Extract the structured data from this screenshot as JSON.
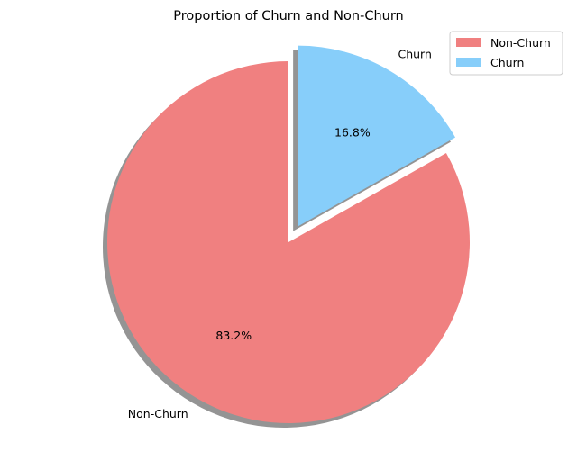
{
  "chart_data": {
    "type": "pie",
    "title": "Proportion of Churn and Non-Churn",
    "series": [
      {
        "name": "Non-Churn",
        "value": 83.2,
        "label": "83.2%",
        "color": "#f08080",
        "explode": 0
      },
      {
        "name": "Churn",
        "value": 16.8,
        "label": "16.8%",
        "color": "#87cefa",
        "explode": 0.1
      }
    ],
    "start_angle_deg": 90,
    "shadow": true,
    "legend": {
      "placement": "top-right",
      "entries": [
        "Non-Churn",
        "Churn"
      ]
    }
  }
}
